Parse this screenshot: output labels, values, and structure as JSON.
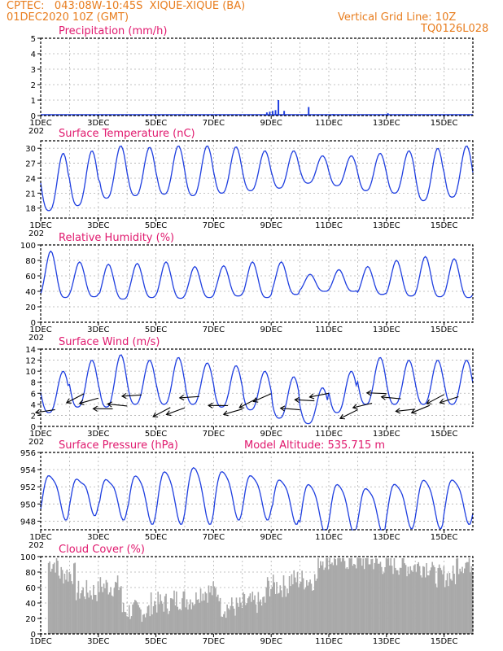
{
  "header": {
    "line1_left": "CPTEC:   043:08W-10:45S  XIQUE-XIQUE (BA)",
    "line2_left": "01DEC2020 10Z (GMT)",
    "line1_right": "Vertical Grid Line: 10Z",
    "line2_right": "TQ0126L028"
  },
  "x_ticks": [
    "1DEC",
    "3DEC",
    "5DEC",
    "7DEC",
    "9DEC",
    "11DEC",
    "13DEC",
    "15DEC"
  ],
  "year_fragment": "202",
  "colors": {
    "header": "#e87d1e",
    "title": "#e0196e",
    "line": "#1f3fe0",
    "cloud": "#a9a9a9",
    "wind": "#000000"
  },
  "chart_data": [
    {
      "type": "bar",
      "title": "Precipitation (mm/h)",
      "ylim": [
        0,
        5
      ],
      "yticks": [
        0,
        1,
        2,
        3,
        4,
        5
      ],
      "x_days": [
        8.85,
        8.95,
        9.05,
        9.15,
        9.25,
        9.45,
        10.3,
        11.15,
        13.05
      ],
      "values": [
        0.2,
        0.25,
        0.3,
        0.35,
        1.0,
        0.3,
        0.55,
        0.1,
        0.15
      ],
      "xlim_days": [
        1,
        16
      ]
    },
    {
      "type": "line",
      "title": "Surface Temperature (nC)",
      "ylim": [
        16,
        31.5
      ],
      "yticks": [
        18,
        21,
        24,
        27,
        30
      ],
      "daily_min": [
        17.5,
        18.5,
        20,
        20.5,
        20.8,
        20.5,
        21,
        21.5,
        22,
        23,
        22.5,
        21.5,
        21,
        19.5,
        20.2
      ],
      "daily_max": [
        29,
        29.5,
        30.5,
        30.2,
        30.5,
        30.5,
        30.3,
        29.5,
        29.5,
        28.5,
        28.5,
        29,
        29.5,
        30,
        30.5
      ],
      "xlim_days": [
        1,
        16
      ]
    },
    {
      "type": "line",
      "title": "Relative Humidity (%)",
      "ylim": [
        0,
        100
      ],
      "yticks": [
        0,
        20,
        40,
        60,
        80,
        100
      ],
      "daily_max": [
        92,
        78,
        75,
        76,
        78,
        72,
        73,
        78,
        78,
        62,
        68,
        72,
        80,
        85,
        82
      ],
      "daily_min": [
        32,
        33,
        30,
        32,
        31,
        32,
        34,
        32,
        36,
        40,
        40,
        36,
        34,
        33,
        32
      ],
      "xlim_days": [
        1,
        16
      ]
    },
    {
      "type": "line",
      "title": "Surface Wind (m/s)",
      "ylim": [
        0,
        14
      ],
      "yticks": [
        0,
        2,
        4,
        6,
        8,
        10,
        12,
        14
      ],
      "daily_max": [
        10,
        12,
        13,
        12,
        12.5,
        11.5,
        11,
        10,
        9,
        7,
        10,
        12.5,
        12,
        12,
        12
      ],
      "daily_min": [
        2.5,
        3.5,
        3.5,
        4,
        4,
        4,
        3.5,
        3,
        1.5,
        0.5,
        2.5,
        4,
        4,
        4,
        4
      ],
      "arrow_days": [
        1.5,
        2.5,
        3,
        3.5,
        4,
        4.5,
        5.5,
        6,
        6.5,
        7.5,
        8,
        8.5,
        9,
        10,
        10.5,
        11,
        12,
        12.5,
        13,
        13.5,
        14,
        14.5,
        15,
        15.5
      ],
      "xlim_days": [
        1,
        16
      ]
    },
    {
      "type": "line",
      "title": "Surface Pressure (hPa)",
      "annotation": "Model Altitude: 535.715  m",
      "ylim": [
        947,
        956
      ],
      "yticks": [
        948,
        950,
        952,
        954,
        956
      ],
      "daily_max": [
        954,
        953.5,
        953.5,
        954,
        954.5,
        955,
        954.5,
        954,
        953.5,
        953,
        953,
        952.5,
        953,
        953.5,
        953.5
      ],
      "daily_min": [
        949,
        949.5,
        949,
        948.5,
        948.5,
        948.5,
        949,
        949,
        948.5,
        947.5,
        947.5,
        947.5,
        948,
        948,
        948.5
      ],
      "xlim_days": [
        1,
        16
      ]
    },
    {
      "type": "bar",
      "title": "Cloud Cover (%)",
      "ylim": [
        0,
        100
      ],
      "yticks": [
        0,
        20,
        40,
        60,
        80,
        100
      ],
      "segments": [
        {
          "from": 1.0,
          "to": 1.6,
          "level": 92
        },
        {
          "from": 1.6,
          "to": 2.2,
          "level": 78
        },
        {
          "from": 2.2,
          "to": 3.0,
          "level": 55
        },
        {
          "from": 3.0,
          "to": 3.8,
          "level": 62
        },
        {
          "from": 3.8,
          "to": 4.8,
          "level": 30
        },
        {
          "from": 4.8,
          "to": 5.6,
          "level": 40
        },
        {
          "from": 5.6,
          "to": 6.4,
          "level": 45
        },
        {
          "from": 6.4,
          "to": 7.2,
          "level": 55
        },
        {
          "from": 7.2,
          "to": 8.0,
          "level": 35
        },
        {
          "from": 8.0,
          "to": 8.8,
          "level": 40
        },
        {
          "from": 8.8,
          "to": 9.6,
          "level": 62
        },
        {
          "from": 9.6,
          "to": 10.6,
          "level": 70
        },
        {
          "from": 10.6,
          "to": 11.6,
          "level": 97
        },
        {
          "from": 11.6,
          "to": 12.6,
          "level": 95
        },
        {
          "from": 12.6,
          "to": 13.6,
          "level": 90
        },
        {
          "from": 13.6,
          "to": 14.6,
          "level": 88
        },
        {
          "from": 14.6,
          "to": 15.4,
          "level": 75
        },
        {
          "from": 15.4,
          "to": 16.0,
          "level": 92
        }
      ],
      "xlim_days": [
        1,
        16
      ]
    }
  ]
}
